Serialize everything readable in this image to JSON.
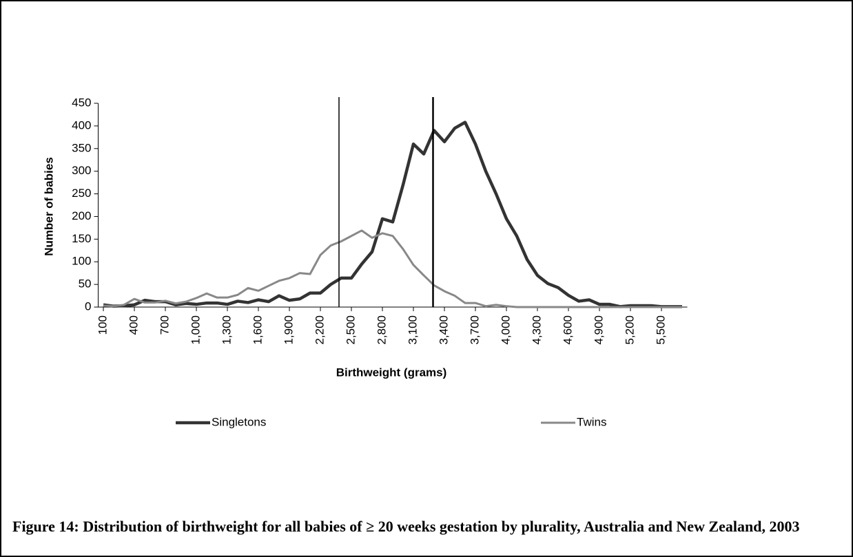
{
  "chart_data": {
    "type": "line",
    "y_axis_label": "Number of babies",
    "x_axis_label": "Birthweight (grams)",
    "caption": "Figure 14: Distribution of birthweight for all babies of ≥ 20 weeks gestation by plurality, Australia and New Zealand, 2003",
    "x": [
      100,
      200,
      300,
      400,
      500,
      600,
      700,
      800,
      900,
      1000,
      1100,
      1200,
      1300,
      1400,
      1500,
      1600,
      1700,
      1800,
      1900,
      2000,
      2100,
      2200,
      2300,
      2400,
      2500,
      2600,
      2700,
      2800,
      2900,
      3000,
      3100,
      3200,
      3300,
      3400,
      3500,
      3600,
      3700,
      3800,
      3900,
      4000,
      4100,
      4200,
      4300,
      4400,
      4500,
      4600,
      4700,
      4800,
      4900,
      5000,
      5100,
      5200,
      5300,
      5400,
      5500,
      5600,
      5700
    ],
    "series": [
      {
        "name": "Singletons",
        "color": "#333333",
        "width": 4.5,
        "values": [
          5,
          2,
          3,
          5,
          15,
          12,
          12,
          5,
          8,
          6,
          9,
          9,
          6,
          13,
          10,
          16,
          12,
          25,
          15,
          18,
          31,
          31,
          50,
          64,
          64,
          95,
          122,
          195,
          188,
          270,
          360,
          338,
          390,
          365,
          395,
          408,
          360,
          300,
          250,
          195,
          157,
          105,
          70,
          52,
          43,
          26,
          13,
          16,
          6,
          6,
          1,
          3,
          3,
          3,
          1,
          1,
          1
        ]
      },
      {
        "name": "Twins",
        "color": "#888888",
        "width": 3,
        "values": [
          3,
          2,
          5,
          18,
          10,
          10,
          14,
          8,
          12,
          20,
          30,
          21,
          21,
          27,
          42,
          36,
          47,
          58,
          64,
          75,
          73,
          115,
          136,
          145,
          157,
          169,
          153,
          163,
          157,
          128,
          93,
          70,
          48,
          35,
          25,
          9,
          9,
          2,
          5,
          2,
          0,
          0,
          0,
          0,
          0,
          0,
          0,
          0,
          0,
          0,
          0,
          0,
          0,
          0,
          0,
          0,
          0
        ]
      }
    ],
    "vlines": [
      2380,
      3290
    ],
    "xlim": [
      50,
      5750
    ],
    "xticks": [
      100,
      400,
      700,
      {
        "value": 1000,
        "label": "1,000"
      },
      {
        "value": 1300,
        "label": "1,300"
      },
      {
        "value": 1600,
        "label": "1,600"
      },
      {
        "value": 1900,
        "label": "1,900"
      },
      {
        "value": 2200,
        "label": "2,200"
      },
      {
        "value": 2500,
        "label": "2,500"
      },
      {
        "value": 2800,
        "label": "2,800"
      },
      {
        "value": 3100,
        "label": "3,100"
      },
      {
        "value": 3400,
        "label": "3,400"
      },
      {
        "value": 3700,
        "label": "3,700"
      },
      {
        "value": 4000,
        "label": "4,000"
      },
      {
        "value": 4300,
        "label": "4,300"
      },
      {
        "value": 4600,
        "label": "4,600"
      },
      {
        "value": 4900,
        "label": "4,900"
      },
      {
        "value": 5200,
        "label": "5,200"
      },
      {
        "value": 5500,
        "label": "5,500"
      }
    ],
    "ylim": [
      0,
      450
    ],
    "yticks": [
      0,
      50,
      100,
      150,
      200,
      250,
      300,
      350,
      400,
      450
    ],
    "legend": "bottom"
  }
}
